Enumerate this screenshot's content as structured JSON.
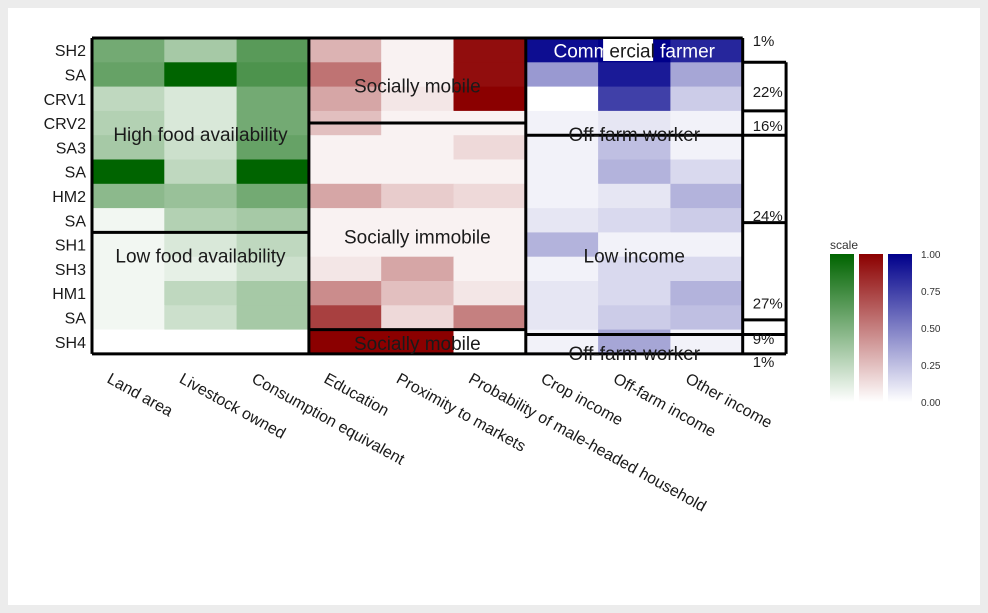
{
  "chart_data": {
    "type": "heatmap",
    "rows": [
      "SH2",
      "SA",
      "CRV1",
      "CRV2",
      "SA3",
      "SA",
      "HM2",
      "SA",
      "SH1",
      "SH3",
      "HM1",
      "SA",
      "SH4"
    ],
    "columns": [
      "Land area",
      "Livestock owned",
      "Consumption equivalent",
      "Education",
      "Proximity to markets",
      "Probability of male-headed household",
      "Crop income",
      "Off-farm income",
      "Other income"
    ],
    "column_palettes": [
      "green",
      "green",
      "green",
      "red",
      "red",
      "red",
      "blue",
      "blue",
      "blue"
    ],
    "palette_colors": {
      "green": "#006400",
      "red": "#8b0000",
      "blue": "#00008b"
    },
    "values": [
      [
        0.55,
        0.35,
        0.65,
        0.3,
        0.05,
        0.95,
        0.95,
        1.0,
        0.85
      ],
      [
        0.6,
        1.0,
        0.7,
        0.55,
        0.05,
        0.95,
        0.4,
        0.9,
        0.35
      ],
      [
        0.25,
        0.15,
        0.55,
        0.35,
        0.1,
        1.0,
        0.0,
        0.75,
        0.2
      ],
      [
        0.3,
        0.15,
        0.55,
        0.25,
        0.05,
        0.05,
        0.05,
        0.1,
        0.05
      ],
      [
        0.35,
        0.2,
        0.6,
        0.05,
        0.05,
        0.15,
        0.05,
        0.25,
        0.05
      ],
      [
        1.0,
        0.25,
        1.0,
        0.05,
        0.05,
        0.05,
        0.05,
        0.3,
        0.15
      ],
      [
        0.45,
        0.4,
        0.55,
        0.35,
        0.2,
        0.15,
        0.05,
        0.1,
        0.3
      ],
      [
        0.05,
        0.3,
        0.35,
        0.05,
        0.05,
        0.05,
        0.1,
        0.15,
        0.2
      ],
      [
        0.05,
        0.15,
        0.25,
        0.05,
        0.05,
        0.05,
        0.3,
        0.05,
        0.05
      ],
      [
        0.05,
        0.1,
        0.2,
        0.1,
        0.35,
        0.05,
        0.05,
        0.15,
        0.15
      ],
      [
        0.05,
        0.25,
        0.35,
        0.45,
        0.25,
        0.1,
        0.1,
        0.15,
        0.3
      ],
      [
        0.05,
        0.2,
        0.35,
        0.75,
        0.15,
        0.5,
        0.1,
        0.2,
        0.25
      ],
      [
        0.0,
        0.0,
        0.0,
        1.0,
        1.0,
        0.0,
        0.05,
        0.35,
        0.05
      ]
    ],
    "overlay_labels": [
      "High food availability",
      "Low food availability",
      "Socially mobile",
      "Socially immobile",
      "Socially mobile",
      "Commercial farmer",
      "Off-farm worker",
      "Low income",
      "Off-farm worker"
    ],
    "percentages": [
      "1%",
      "22%",
      "16%",
      "24%",
      "27%",
      "9%",
      "1%"
    ],
    "legend": {
      "title": "scale",
      "ticks": [
        "1.00",
        "0.75",
        "0.50",
        "0.25",
        "0.00"
      ]
    },
    "scale_range": [
      0,
      1
    ]
  }
}
